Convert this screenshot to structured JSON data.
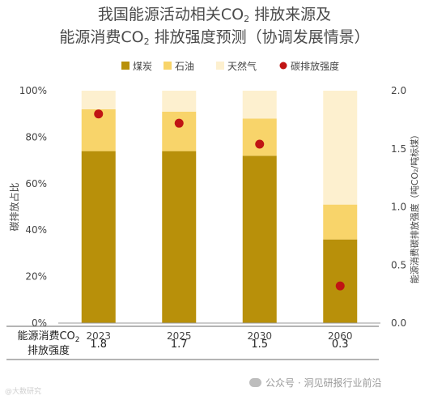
{
  "title": {
    "line1_prefix": "我国能源活动相关CO",
    "line1_sub": "2",
    "line1_suffix": " 排放来源及",
    "line2_prefix": "能源消费CO",
    "line2_sub": "2",
    "line2_suffix": " 排放强度预测（协调发展情景）"
  },
  "chart_data": {
    "type": "bar",
    "stacked": true,
    "categories": [
      "2023",
      "2025",
      "2030",
      "2060"
    ],
    "series": [
      {
        "name": "煤炭",
        "color": "#b8900a",
        "values": [
          74,
          74,
          72,
          36
        ]
      },
      {
        "name": "石油",
        "color": "#f8d46a",
        "values": [
          18,
          17,
          16,
          15
        ]
      },
      {
        "name": "天然气",
        "color": "#fdf0cf",
        "values": [
          8,
          9,
          12,
          49
        ]
      }
    ],
    "line_series": {
      "name": "碳排放强度",
      "color": "#c01414",
      "axis": "right",
      "values": [
        1.8,
        1.72,
        1.54,
        0.32
      ]
    },
    "ylabel": "碳排放占比",
    "ylim": [
      0,
      100
    ],
    "yticks": [
      "0%",
      "20%",
      "40%",
      "60%",
      "80%",
      "100%"
    ],
    "y2label": "能源消费碳排放强度（吨CO₂/吨标煤）",
    "y2lim": [
      0,
      2.0
    ],
    "y2ticks": [
      "0.0",
      "0.5",
      "1.0",
      "1.5",
      "2.0"
    ],
    "legend_position": "top",
    "grid": false
  },
  "footer": {
    "label_line1_prefix": "能源消费CO",
    "label_line1_sub": "2",
    "label_line2": "排放强度",
    "values": [
      "1.8",
      "1.7",
      "1.5",
      "0.3"
    ]
  },
  "watermarks": {
    "left": "@大数研究",
    "right": "公众号 · 洞见研报行业前沿"
  }
}
